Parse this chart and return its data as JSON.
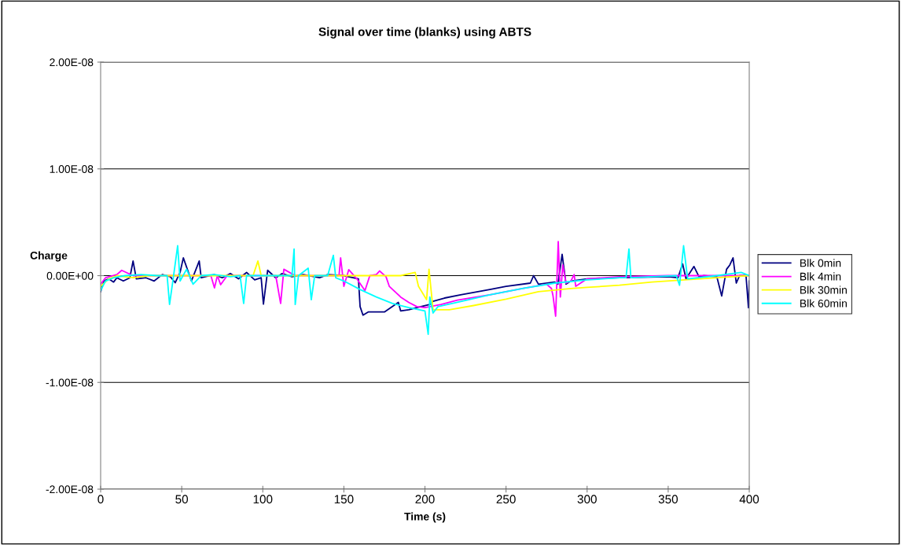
{
  "chart_data": {
    "type": "line",
    "title": "Signal over time (blanks) using ABTS",
    "xlabel": "Time (s)",
    "ylabel": "Charge",
    "xlim": [
      0,
      400
    ],
    "xticks": [
      0,
      50,
      100,
      150,
      200,
      250,
      300,
      350,
      400
    ],
    "ylim": [
      -2e-08,
      2e-08
    ],
    "yticks": [
      {
        "value": -2e-08,
        "label": "-2.00E-08"
      },
      {
        "value": -1e-08,
        "label": "-1.00E-08"
      },
      {
        "value": 0,
        "label": "0.00E+00"
      },
      {
        "value": 1e-08,
        "label": "1.00E-08"
      },
      {
        "value": 2e-08,
        "label": "2.00E-08"
      }
    ],
    "grid": "y",
    "legend": "right",
    "marker": "none",
    "line_style": "solid",
    "series": [
      {
        "name": "Blk 0min",
        "color": "#000080",
        "x": [
          0,
          2,
          5,
          8,
          10,
          14,
          18,
          20,
          22,
          28,
          33,
          38,
          43,
          46,
          49,
          51,
          56,
          60.8,
          62,
          70,
          75,
          80,
          85,
          90,
          95,
          99,
          100.4,
          103,
          108,
          112,
          118,
          125,
          135,
          140,
          150,
          159,
          160,
          161.8,
          165,
          175,
          183.6,
          185,
          190,
          195,
          200,
          203,
          205,
          212,
          222,
          240,
          250,
          265,
          267,
          270,
          280,
          282,
          284.6,
          287,
          290,
          300,
          320,
          350,
          356,
          358.9,
          361,
          365.9,
          369,
          372,
          380,
          383,
          386,
          388,
          390,
          392,
          394,
          398,
          399.5,
          400
        ],
        "values": [
          -1.5e-09,
          -5e-10,
          -3e-10,
          -6e-10,
          -2e-10,
          -5e-10,
          -2e-10,
          1.37e-09,
          -3e-10,
          -2e-10,
          -5e-10,
          1e-10,
          -1e-10,
          -6.6e-10,
          3e-10,
          1.67e-09,
          -5e-10,
          1.37e-09,
          -2e-10,
          1e-10,
          -2e-10,
          2e-10,
          -3e-10,
          3e-10,
          -4e-10,
          -2e-10,
          -2.67e-09,
          5e-10,
          -2e-10,
          2e-10,
          -1e-10,
          1e-10,
          -2e-10,
          1e-10,
          0.0,
          -3e-10,
          -2.9e-09,
          -3.7e-09,
          -3.4e-09,
          -3.4e-09,
          -2.5e-09,
          -3.3e-09,
          -3.2e-09,
          -3e-09,
          -2.8e-09,
          -2.7e-09,
          -2.4e-09,
          -2.1e-09,
          -1.8e-09,
          -1.3e-09,
          -1e-09,
          -7e-10,
          0.0,
          -8e-10,
          -6e-10,
          -8e-10,
          2e-09,
          -8e-10,
          -5e-10,
          -3e-10,
          -2e-10,
          -1e-10,
          -2e-10,
          1.1e-09,
          -3e-10,
          8.6e-10,
          -1e-10,
          0.0,
          -1e-10,
          -1.9e-09,
          6e-10,
          1e-09,
          1.67e-09,
          -7e-10,
          0.0,
          0.0,
          -3e-09,
          -5e-10
        ]
      },
      {
        "name": "Blk 4min",
        "color": "#ff00ff",
        "x": [
          0,
          3,
          10,
          13,
          20,
          40,
          60,
          68,
          70.2,
          72,
          74,
          78,
          93,
          108,
          111,
          113,
          120,
          140,
          147,
          148,
          150,
          153,
          158,
          163,
          166,
          170,
          172,
          176,
          178,
          185,
          190,
          195,
          200,
          210,
          220,
          240,
          260,
          275,
          278,
          279,
          280.6,
          282.2,
          283.5,
          285,
          287,
          290,
          292,
          293,
          300,
          320,
          350,
          380,
          400
        ],
        "values": [
          -8e-10,
          -2e-10,
          1e-10,
          5e-10,
          0.0,
          0.0,
          0.0,
          0.0,
          -1.15e-09,
          0.0,
          -8.5e-10,
          0.0,
          0.0,
          0.0,
          -2.6e-09,
          6e-10,
          0.0,
          0.0,
          0.0,
          1.67e-09,
          -1e-09,
          5.6e-10,
          -3e-10,
          -1.4e-09,
          0.0,
          1e-10,
          4.4e-10,
          -1e-10,
          -1e-09,
          -2e-09,
          -2.5e-09,
          -2.9e-09,
          -3e-09,
          -2.7e-09,
          -2.3e-09,
          -1.8e-09,
          -1.2e-09,
          -8e-10,
          -1.2e-09,
          -1.9e-09,
          -3.8e-09,
          3.2e-09,
          -2e-09,
          1e-09,
          -7e-10,
          -5e-10,
          1e-10,
          -1e-09,
          -3e-10,
          -1e-10,
          0.0,
          0.0,
          0.0
        ]
      },
      {
        "name": "Blk 30min",
        "color": "#ffff00",
        "x": [
          0,
          5,
          10,
          20,
          30,
          45,
          60,
          94,
          97,
          99,
          150,
          170,
          185,
          194,
          196,
          201,
          202.5,
          205,
          215,
          230,
          250,
          270,
          290,
          300,
          320,
          340,
          360,
          380,
          400
        ],
        "values": [
          -1e-09,
          -3e-10,
          0.0,
          -2e-10,
          0.0,
          0.0,
          0.0,
          0.0,
          1.37e-09,
          0.0,
          0.0,
          0.0,
          0.0,
          3e-10,
          -1e-09,
          -2.25e-09,
          6e-10,
          -3.2e-09,
          -3.2e-09,
          -2.8e-09,
          -2.2e-09,
          -1.5e-09,
          -1.2e-09,
          -1.1e-09,
          -9e-10,
          -6e-10,
          -4e-10,
          -2e-10,
          0.0
        ]
      },
      {
        "name": "Blk 60min",
        "color": "#00ffff",
        "x": [
          0,
          3,
          8,
          15,
          25,
          35,
          41,
          42.5,
          45,
          47.5,
          49,
          53,
          57,
          62,
          70,
          80,
          86,
          88.2,
          90,
          96,
          110,
          118,
          119.3,
          120,
          122,
          128,
          129.9,
          132,
          140,
          143.5,
          145,
          150,
          160,
          170,
          180,
          190,
          200,
          202,
          203,
          205,
          208,
          220,
          240,
          260,
          280,
          300,
          320,
          324,
          325.8,
          327,
          340,
          355,
          357,
          359.5,
          362,
          380,
          395,
          400
        ],
        "values": [
          -1.4e-09,
          -5e-10,
          -2e-10,
          0.0,
          1e-10,
          0.0,
          0.0,
          -2.7e-09,
          0.0,
          2.8e-09,
          -5e-10,
          6e-10,
          -8e-10,
          0.0,
          1e-10,
          -1e-10,
          0.0,
          -2.6e-09,
          0.0,
          0.0,
          0.0,
          0.0,
          2.5e-09,
          -2.7e-09,
          0.0,
          7e-10,
          -2.25e-09,
          0.0,
          0.0,
          1.9e-09,
          -2e-10,
          -5e-10,
          -1.3e-09,
          -2e-09,
          -2.6e-09,
          -3e-09,
          -3.3e-09,
          -5.5e-09,
          -2e-09,
          -3.5e-09,
          -2.9e-09,
          -2.5e-09,
          -1.8e-09,
          -1.2e-09,
          -7e-10,
          -4e-10,
          -2e-10,
          -2e-10,
          2.5e-09,
          -2e-10,
          -1e-10,
          0.0,
          -9e-10,
          2.8e-09,
          -3e-10,
          0.0,
          3e-10,
          0.0
        ]
      }
    ]
  }
}
